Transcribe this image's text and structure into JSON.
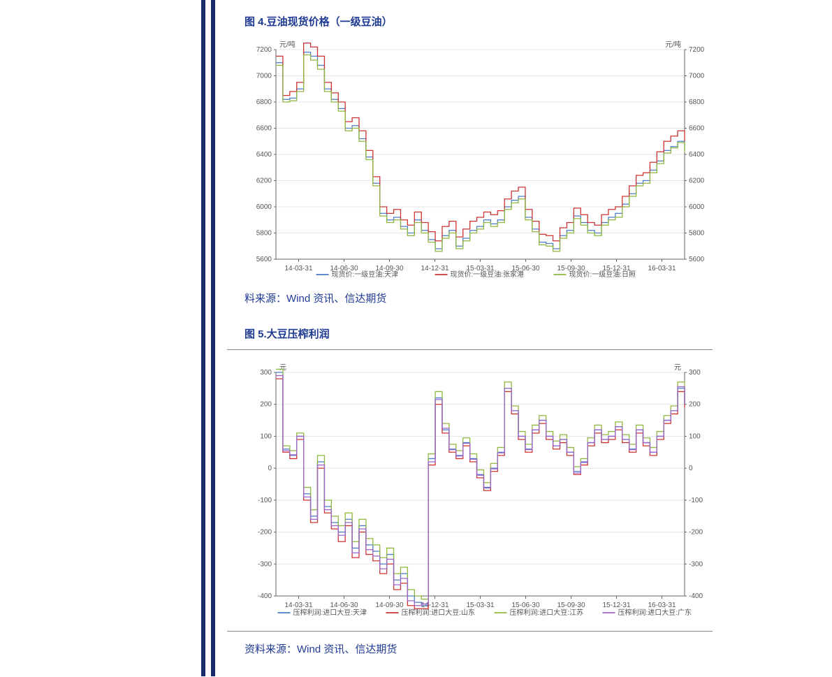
{
  "sidebar": {
    "bar_color": "#1a2a6c"
  },
  "figure4": {
    "title": "图 4.豆油现货价格（一级豆油）",
    "source": "料来源：Wind 资讯、信达期货",
    "chart": {
      "type": "line",
      "unit_left": "元/吨",
      "unit_right": "元/吨",
      "y_min": 5600,
      "y_max": 7200,
      "y_step": 200,
      "x_labels": [
        "14-03-31",
        "14-06-30",
        "14-09-30",
        "14-12-31",
        "15-03-31",
        "15-06-30",
        "15-09-30",
        "15-12-31",
        "16-03-31"
      ],
      "background": "#ffffff",
      "grid_color": "#e5e5e5",
      "axis_color": "#666666",
      "tick_fontsize": 10,
      "line_width": 1.3,
      "series": [
        {
          "name": "现货价:一级豆油:天津",
          "color": "#4a7cc7",
          "data": [
            7100,
            6820,
            6830,
            6900,
            7180,
            7150,
            7080,
            6900,
            6820,
            6750,
            6600,
            6620,
            6520,
            6380,
            6180,
            5950,
            5900,
            5920,
            5850,
            5800,
            5900,
            5820,
            5750,
            5680,
            5780,
            5820,
            5700,
            5760,
            5820,
            5850,
            5900,
            5870,
            5900,
            6000,
            6050,
            6080,
            5920,
            5830,
            5730,
            5720,
            5680,
            5780,
            5820,
            5930,
            5880,
            5820,
            5800,
            5880,
            5920,
            5950,
            6020,
            6100,
            6180,
            6200,
            6280,
            6350,
            6430,
            6460,
            6500,
            6430
          ]
        },
        {
          "name": "现货价:一级豆油:张家港",
          "color": "#cc3333",
          "data": [
            7150,
            6850,
            6880,
            6950,
            7250,
            7220,
            7150,
            6950,
            6870,
            6800,
            6650,
            6680,
            6580,
            6430,
            6230,
            6000,
            5950,
            5980,
            5900,
            5860,
            5960,
            5880,
            5810,
            5740,
            5850,
            5890,
            5770,
            5830,
            5890,
            5920,
            5960,
            5940,
            5970,
            6060,
            6120,
            6150,
            5980,
            5890,
            5790,
            5780,
            5740,
            5840,
            5880,
            5990,
            5940,
            5880,
            5860,
            5940,
            5980,
            6000,
            6080,
            6160,
            6240,
            6260,
            6340,
            6420,
            6500,
            6540,
            6580,
            6500
          ]
        },
        {
          "name": "现货价:一级豆油:日照",
          "color": "#8fb83e",
          "data": [
            7080,
            6800,
            6810,
            6880,
            7160,
            7120,
            7050,
            6880,
            6800,
            6730,
            6580,
            6600,
            6500,
            6360,
            6160,
            5930,
            5880,
            5900,
            5830,
            5780,
            5880,
            5800,
            5730,
            5660,
            5760,
            5800,
            5680,
            5740,
            5800,
            5830,
            5880,
            5850,
            5880,
            5980,
            6030,
            6060,
            5900,
            5810,
            5710,
            5700,
            5660,
            5760,
            5800,
            5910,
            5860,
            5800,
            5780,
            5860,
            5900,
            5920,
            6000,
            6080,
            6160,
            6180,
            6260,
            6330,
            6410,
            6450,
            6490,
            6420
          ]
        }
      ]
    }
  },
  "figure5": {
    "title": "图 5.大豆压榨利润",
    "source": "资料来源：Wind 资讯、信达期货",
    "chart": {
      "type": "line",
      "unit_left": "元",
      "unit_right": "元",
      "y_min": -400,
      "y_max": 300,
      "y_step": 100,
      "x_labels": [
        "14-03-31",
        "14-06-30",
        "14-09-30",
        "14-12-31",
        "15-03-31",
        "15-06-30",
        "15-09-30",
        "15-12-31",
        "16-03-31"
      ],
      "background": "#ffffff",
      "grid_color": "#e5e5e5",
      "axis_color": "#666666",
      "tick_fontsize": 10,
      "line_width": 1.3,
      "series": [
        {
          "name": "压榨利润:进口大豆:天津",
          "color": "#4a7cc7",
          "data": [
            300,
            60,
            40,
            100,
            -80,
            -150,
            20,
            -120,
            -170,
            -200,
            -160,
            -250,
            -180,
            -240,
            -260,
            -300,
            -270,
            -350,
            -330,
            -400,
            -420,
            -430,
            30,
            220,
            120,
            60,
            40,
            80,
            30,
            -20,
            -60,
            0,
            50,
            250,
            180,
            100,
            60,
            120,
            150,
            100,
            70,
            90,
            50,
            -10,
            20,
            80,
            120,
            90,
            100,
            130,
            90,
            60,
            120,
            80,
            50,
            100,
            150,
            180,
            250,
            200
          ]
        },
        {
          "name": "压榨利润:进口大豆:山东",
          "color": "#cc3333",
          "data": [
            280,
            50,
            30,
            90,
            -100,
            -170,
            0,
            -140,
            -190,
            -230,
            -180,
            -280,
            -200,
            -270,
            -290,
            -330,
            -300,
            -380,
            -360,
            -430,
            -440,
            -440,
            10,
            200,
            110,
            50,
            30,
            70,
            20,
            -30,
            -70,
            -10,
            40,
            240,
            170,
            90,
            50,
            110,
            140,
            90,
            60,
            80,
            40,
            -20,
            10,
            70,
            110,
            80,
            90,
            120,
            80,
            50,
            110,
            70,
            40,
            90,
            140,
            170,
            240,
            190
          ]
        },
        {
          "name": "压榨利润:进口大豆:江苏",
          "color": "#8fb83e",
          "data": [
            310,
            70,
            55,
            110,
            -60,
            -130,
            40,
            -100,
            -150,
            -180,
            -140,
            -230,
            -160,
            -220,
            -240,
            -280,
            -250,
            -330,
            -310,
            -380,
            -400,
            -410,
            45,
            240,
            140,
            75,
            55,
            95,
            45,
            -5,
            -45,
            15,
            65,
            270,
            195,
            115,
            75,
            135,
            165,
            115,
            85,
            105,
            65,
            5,
            30,
            95,
            135,
            105,
            115,
            145,
            105,
            75,
            135,
            95,
            65,
            115,
            165,
            195,
            270,
            215
          ]
        },
        {
          "name": "压榨利润:进口大豆:广东",
          "color": "#9966cc",
          "data": [
            290,
            55,
            42,
            100,
            -90,
            -160,
            10,
            -130,
            -180,
            -210,
            -170,
            -265,
            -190,
            -255,
            -275,
            -315,
            -285,
            -365,
            -345,
            -415,
            -430,
            -425,
            20,
            215,
            125,
            58,
            38,
            78,
            28,
            -22,
            -62,
            -2,
            48,
            250,
            180,
            100,
            58,
            120,
            150,
            100,
            70,
            90,
            50,
            -15,
            18,
            80,
            120,
            90,
            100,
            130,
            90,
            58,
            120,
            80,
            50,
            100,
            150,
            180,
            255,
            200
          ]
        }
      ]
    }
  }
}
